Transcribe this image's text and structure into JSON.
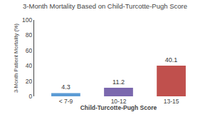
{
  "chart_data": {
    "type": "bar",
    "title": "3-Month Mortality Based on Child-Turcotte-Pugh Score",
    "categories": [
      "< 7-9",
      "10-12",
      "13-15"
    ],
    "values": [
      4.3,
      11.2,
      40.1
    ],
    "colors": [
      "#5b9bd5",
      "#7b68ae",
      "#c0504d"
    ],
    "xlabel": "Child-Turcotte-Pugh Score",
    "ylabel": "3-Month Patient Mortality (%)",
    "ylim": [
      0,
      100
    ],
    "yticks": [
      0,
      20,
      40,
      60,
      80,
      100
    ],
    "grid": false,
    "data_labels": true
  }
}
